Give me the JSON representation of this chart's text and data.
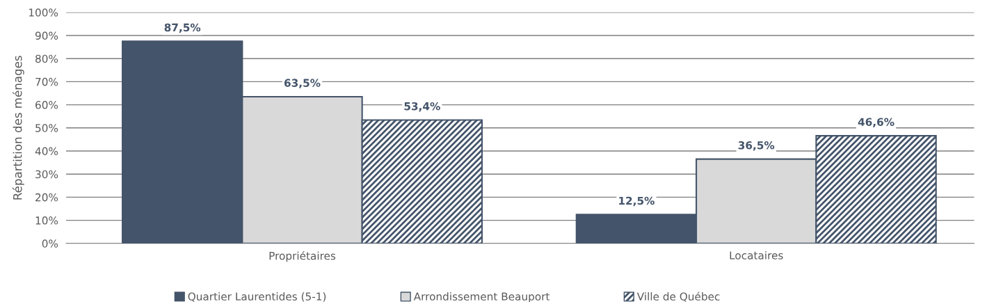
{
  "chart_data": {
    "type": "bar",
    "ylabel": "Répartition des ménages",
    "categories": [
      "Propriétaires",
      "Locataires"
    ],
    "series": [
      {
        "name": "Quartier Laurentides (5-1)",
        "color": "#44546a",
        "values": [
          87.5,
          12.5
        ],
        "value_labels": [
          "87,5%",
          "12,5%"
        ]
      },
      {
        "name": "Arrondissement Beauport",
        "color": "#d9d9d9",
        "values": [
          63.5,
          36.5
        ],
        "value_labels": [
          "63,5%",
          "36,5%"
        ]
      },
      {
        "name": "Ville de Québec",
        "color": "#44546a",
        "values": [
          53.4,
          46.6
        ],
        "value_labels": [
          "53,4%",
          "46,6%"
        ]
      }
    ],
    "ylim": [
      0,
      100
    ],
    "yticks": [
      {
        "value": 0,
        "label": "0%"
      },
      {
        "value": 10,
        "label": "10%"
      },
      {
        "value": 20,
        "label": "20%"
      },
      {
        "value": 30,
        "label": "30%"
      },
      {
        "value": 40,
        "label": "40%"
      },
      {
        "value": 50,
        "label": "50%"
      },
      {
        "value": 60,
        "label": "60%"
      },
      {
        "value": 70,
        "label": "70%"
      },
      {
        "value": 80,
        "label": "80%"
      },
      {
        "value": 90,
        "label": "90%"
      },
      {
        "value": 100,
        "label": "100%"
      }
    ],
    "grid": "y",
    "legend": "bottom"
  }
}
